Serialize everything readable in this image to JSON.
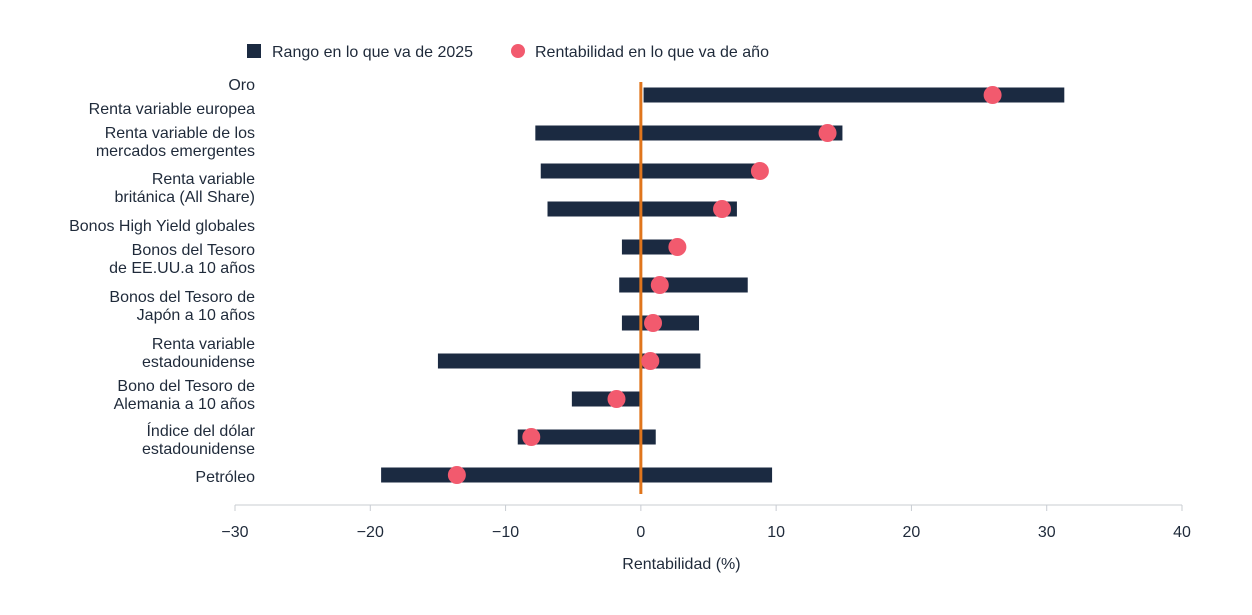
{
  "chart_data": {
    "type": "bar",
    "xlabel": "Rentabilidad (%)",
    "xlim": [
      -30,
      40
    ],
    "xticks": [
      -30,
      -20,
      -10,
      0,
      10,
      20,
      30,
      40
    ],
    "xtick_labels": [
      "−30",
      "−20",
      "−10",
      "0",
      "10",
      "20",
      "30",
      "40"
    ],
    "legend_position": "top",
    "series": [
      {
        "name": "Rango en lo que va de 2025",
        "kind": "range-bar",
        "color": "#1b2a41"
      },
      {
        "name": "Rentabilidad en lo que va de año",
        "kind": "dot",
        "color": "#f25a6e"
      }
    ],
    "zero_line_color": "#e0751c",
    "categories": [
      {
        "label": [
          "Oro"
        ],
        "min": 0.2,
        "max": 31.3,
        "ytd": 26.0
      },
      {
        "label": [
          "Renta variable europea"
        ],
        "min": null,
        "max": null,
        "ytd": null
      },
      {
        "label": [
          "Renta variable de los",
          "mercados emergentes"
        ],
        "min": -7.8,
        "max": 14.9,
        "ytd": 13.8
      },
      {
        "label": [
          "Renta variable",
          "británica (All Share)"
        ],
        "min": -7.4,
        "max": 8.9,
        "ytd": 8.8
      },
      {
        "label": [
          "Bonos High Yield globales"
        ],
        "min": -6.9,
        "max": 7.1,
        "ytd": 6.0
      },
      {
        "label": [
          "Bonos del Tesoro",
          "de EE.UU.a 10 años"
        ],
        "min": -1.4,
        "max": 2.7,
        "ytd": 2.7
      },
      {
        "label": [
          "Bonos del Tesoro de",
          "Japón a 10 años"
        ],
        "min": -1.6,
        "max": 7.9,
        "ytd": 1.4
      },
      {
        "label": [
          "Renta variable",
          "estadounidense"
        ],
        "min": -1.4,
        "max": 4.3,
        "ytd": 0.9
      },
      {
        "label": [
          "Bono del Tesoro de",
          "Alemania a 10 años"
        ],
        "min": -15.0,
        "max": 4.4,
        "ytd": 0.7
      },
      {
        "label": [
          "Índice del dólar",
          "estadounidense"
        ],
        "min": -5.1,
        "max": 0.0,
        "ytd": -1.8
      },
      {
        "label": [
          "Petróleo"
        ],
        "min": -9.1,
        "max": 1.1,
        "ytd": -8.1
      },
      {
        "label": [],
        "min": -19.2,
        "max": 9.7,
        "ytd": -13.6
      }
    ]
  }
}
